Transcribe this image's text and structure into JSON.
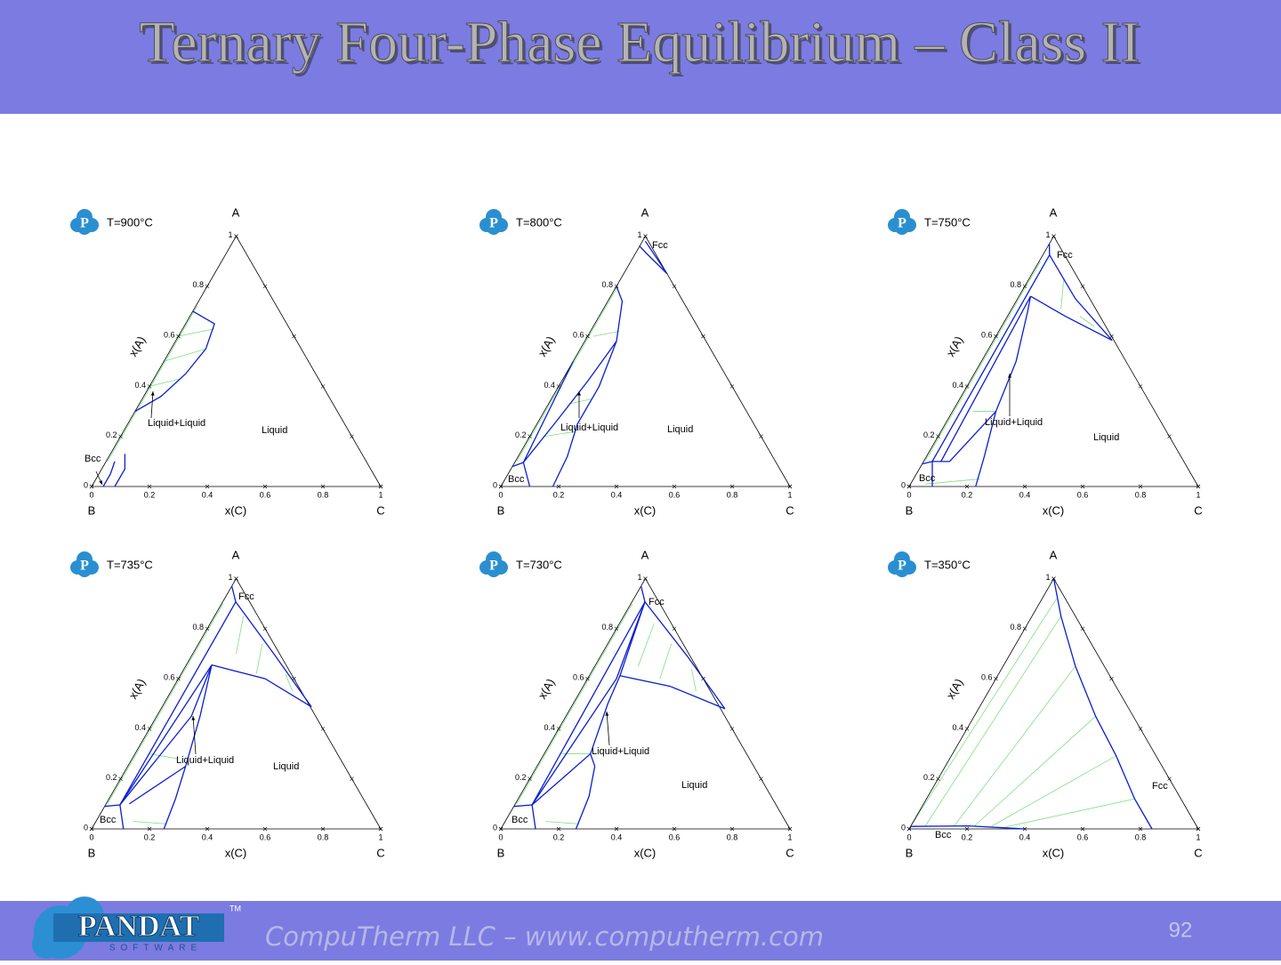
{
  "header": {
    "title": "Ternary Four-Phase Equilibrium – Class II"
  },
  "ticks": [
    0,
    0.2,
    0.4,
    0.6,
    0.8,
    1
  ],
  "vertices": {
    "top": "A",
    "left": "B",
    "right": "C"
  },
  "axes": {
    "bottom": "x(C)",
    "left": "x(A)"
  },
  "panel_logo": "P",
  "panels": [
    {
      "temperature": "T=900°C",
      "labels": [
        "Liquid+Liquid",
        "Liquid",
        "Bcc"
      ]
    },
    {
      "temperature": "T=800°C",
      "labels": [
        "Liquid+Liquid",
        "Liquid",
        "Bcc",
        "Fcc"
      ]
    },
    {
      "temperature": "T=750°C",
      "labels": [
        "Liquid+Liquid",
        "Liquid",
        "Bcc",
        "Fcc"
      ]
    },
    {
      "temperature": "T=735°C",
      "labels": [
        "Liquid+Liquid",
        "Liquid",
        "Bcc",
        "Fcc"
      ]
    },
    {
      "temperature": "T=730°C",
      "labels": [
        "Liquid+Liquid",
        "Liquid",
        "Bcc",
        "Fcc"
      ]
    },
    {
      "temperature": "T=350°C",
      "labels": [
        "Bcc",
        "Fcc"
      ]
    }
  ],
  "footer": {
    "logo": "PANDAT",
    "logo_sub": "SOFTWARE",
    "trademark": "TM",
    "company": "CompuTherm LLC – www.computherm.com",
    "page": "92"
  }
}
